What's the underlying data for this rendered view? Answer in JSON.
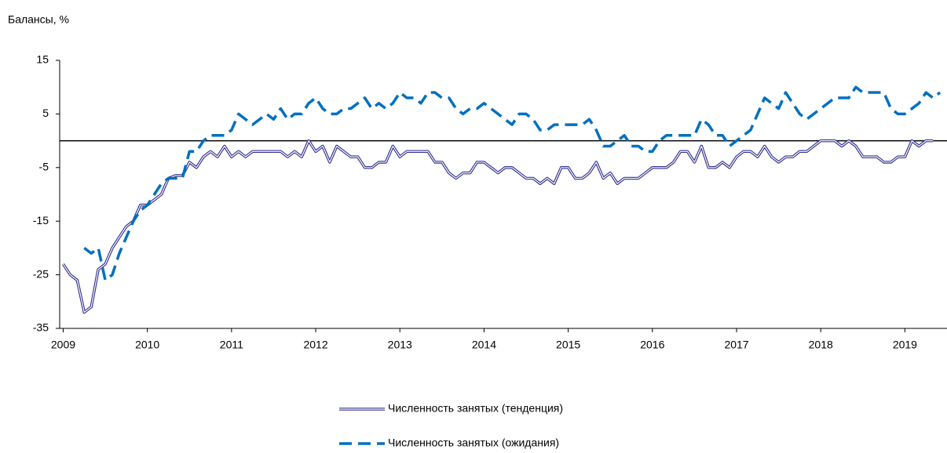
{
  "chart_data": {
    "type": "line",
    "ylabel": "Балансы, %",
    "x": [
      0,
      1,
      2,
      3,
      4,
      5,
      6,
      7,
      8,
      9,
      10,
      11,
      12,
      13,
      14,
      15,
      16,
      17,
      18,
      19,
      20,
      21,
      22,
      23,
      24,
      25,
      26,
      27,
      28,
      29,
      30,
      31,
      32,
      33,
      34,
      35,
      36,
      37,
      38,
      39,
      40,
      41,
      42,
      43,
      44,
      45,
      46,
      47,
      48,
      49,
      50,
      51,
      52,
      53,
      54,
      55,
      56,
      57,
      58,
      59,
      60,
      61,
      62,
      63,
      64,
      65,
      66,
      67,
      68,
      69,
      70,
      71,
      72,
      73,
      74,
      75,
      76,
      77,
      78,
      79,
      80,
      81,
      82,
      83,
      84,
      85,
      86,
      87,
      88,
      89,
      90,
      91,
      92,
      93,
      94,
      95,
      96,
      97,
      98,
      99,
      100,
      101,
      102,
      103,
      104,
      105,
      106,
      107,
      108,
      109,
      110,
      111,
      112,
      113,
      114,
      115,
      116,
      117,
      118,
      119,
      120,
      121,
      122,
      123,
      124,
      125
    ],
    "xlim": [
      -0.5,
      126
    ],
    "xticks": [
      {
        "value": 0,
        "label": "2009"
      },
      {
        "value": 12,
        "label": "2010"
      },
      {
        "value": 24,
        "label": "2011"
      },
      {
        "value": 36,
        "label": "2012"
      },
      {
        "value": 48,
        "label": "2013"
      },
      {
        "value": 60,
        "label": "2014"
      },
      {
        "value": 72,
        "label": "2015"
      },
      {
        "value": 84,
        "label": "2016"
      },
      {
        "value": 96,
        "label": "2017"
      },
      {
        "value": 108,
        "label": "2018"
      },
      {
        "value": 120,
        "label": "2019"
      }
    ],
    "ylim": [
      -35,
      15
    ],
    "yticks": [
      15,
      5,
      -5,
      -15,
      -25,
      -35
    ],
    "legend": "bottom",
    "series": [
      {
        "name": "Численность занятых (тенденция)",
        "color": "#33338f",
        "style": "double",
        "values": [
          -23,
          -25,
          -26,
          -32,
          -31,
          -24,
          -23,
          -20,
          -18,
          -16,
          -15,
          -12,
          -12,
          -11,
          -10,
          -7,
          -6.5,
          -6.5,
          -4,
          -5,
          -3,
          -2,
          -3,
          -1,
          -3,
          -2,
          -3,
          -2,
          -2,
          -2,
          -2,
          -2,
          -3,
          -2,
          -3,
          0,
          -2,
          -1,
          -4,
          -1,
          -2,
          -3,
          -3,
          -5,
          -5,
          -4,
          -4,
          -1,
          -3,
          -2,
          -2,
          -2,
          -2,
          -4,
          -4,
          -6,
          -7,
          -6,
          -6,
          -4,
          -4,
          -5,
          -6,
          -5,
          -5,
          -6,
          -7,
          -7,
          -8,
          -7,
          -8,
          -5,
          -5,
          -7,
          -7,
          -6,
          -4,
          -7,
          -6,
          -8,
          -7,
          -7,
          -7,
          -6,
          -5,
          -5,
          -5,
          -4,
          -2,
          -2,
          -4,
          -1,
          -5,
          -5,
          -4,
          -5,
          -3,
          -2,
          -2,
          -3,
          -1,
          -3,
          -4,
          -3,
          -3,
          -2,
          -2,
          -1,
          0,
          0,
          0,
          -1,
          0,
          -1,
          -3,
          -3,
          -3,
          -4,
          -4,
          -3,
          -3,
          0,
          -1,
          0,
          0,
          null
        ]
      },
      {
        "name": "Численность занятых (ожидания)",
        "color": "#0070c0",
        "style": "dashed",
        "values": [
          null,
          null,
          null,
          -20,
          -21,
          -20,
          -26,
          -25,
          -21,
          -18,
          -15,
          -13,
          -12,
          -10,
          -8,
          -7,
          -7,
          -7,
          -2,
          -2,
          0,
          1,
          1,
          1,
          2,
          5,
          4,
          3,
          4,
          5,
          4,
          6,
          4,
          5,
          5,
          7,
          8,
          6,
          5,
          5,
          6,
          6,
          7,
          8,
          6,
          7,
          6,
          7,
          9,
          8,
          8,
          7,
          9,
          9,
          8,
          8,
          6,
          5,
          6,
          6,
          7,
          6,
          5,
          4,
          3,
          5,
          5,
          4,
          2,
          2,
          3,
          3,
          3,
          3,
          3,
          4,
          2,
          -1,
          -1,
          0,
          1,
          -1,
          -1,
          -2,
          -2,
          0,
          1,
          1,
          1,
          1,
          1,
          4,
          3,
          1,
          1,
          -1,
          0,
          1,
          2,
          5,
          8,
          7,
          6,
          9,
          7,
          5,
          4,
          5,
          6,
          7,
          8,
          8,
          8,
          10,
          9,
          9,
          9,
          9,
          6,
          5,
          5,
          6,
          7,
          9,
          8,
          9
        ]
      }
    ]
  }
}
